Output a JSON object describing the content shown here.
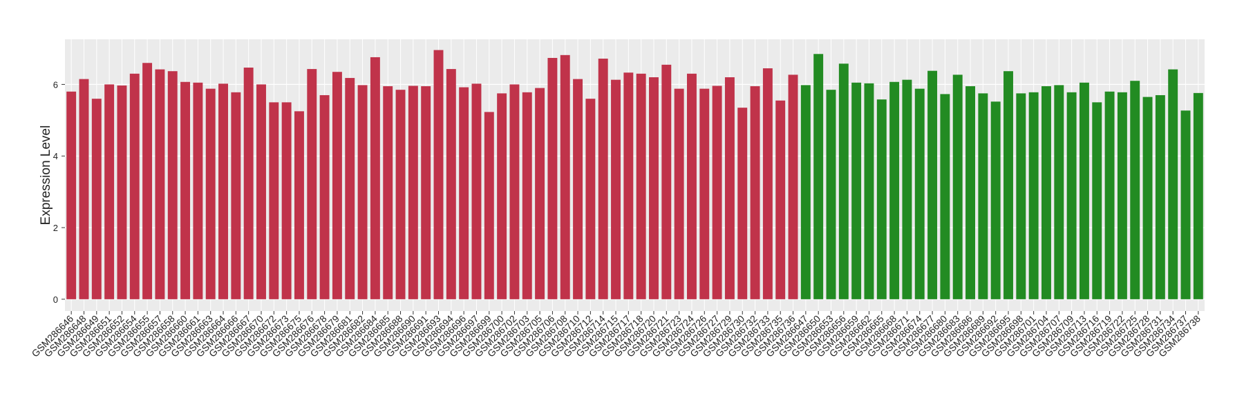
{
  "chart_data": {
    "type": "bar",
    "y_label": "Expression Level",
    "categories": [
      "GSM286646",
      "GSM286648",
      "GSM286649",
      "GSM286651",
      "GSM286652",
      "GSM286654",
      "GSM286655",
      "GSM286657",
      "GSM286658",
      "GSM286660",
      "GSM286661",
      "GSM286663",
      "GSM286664",
      "GSM286666",
      "GSM286667",
      "GSM286670",
      "GSM286672",
      "GSM286673",
      "GSM286675",
      "GSM286676",
      "GSM286678",
      "GSM286679",
      "GSM286681",
      "GSM286682",
      "GSM286684",
      "GSM286685",
      "GSM286688",
      "GSM286690",
      "GSM286691",
      "GSM286693",
      "GSM286694",
      "GSM286696",
      "GSM286697",
      "GSM286699",
      "GSM286700",
      "GSM286702",
      "GSM286703",
      "GSM286705",
      "GSM286706",
      "GSM286708",
      "GSM286710",
      "GSM286712",
      "GSM286714",
      "GSM286715",
      "GSM286717",
      "GSM286718",
      "GSM286720",
      "GSM286721",
      "GSM286723",
      "GSM286724",
      "GSM286726",
      "GSM286727",
      "GSM286729",
      "GSM286730",
      "GSM286732",
      "GSM286733",
      "GSM286735",
      "GSM286736",
      "GSM286647",
      "GSM286650",
      "GSM286653",
      "GSM286656",
      "GSM286659",
      "GSM286662",
      "GSM286665",
      "GSM286668",
      "GSM286671",
      "GSM286674",
      "GSM286677",
      "GSM286680",
      "GSM286683",
      "GSM286686",
      "GSM286689",
      "GSM286692",
      "GSM286695",
      "GSM286698",
      "GSM286701",
      "GSM286704",
      "GSM286707",
      "GSM286709",
      "GSM286713",
      "GSM286716",
      "GSM286719",
      "GSM286722",
      "GSM286725",
      "GSM286728",
      "GSM286731",
      "GSM286734",
      "GSM286737",
      "GSM286738"
    ],
    "series": [
      {
        "color": "#c0334a",
        "values": [
          5.8,
          6.15,
          5.6,
          6.0,
          5.97,
          6.3,
          6.6,
          6.42,
          6.37,
          6.07,
          6.05,
          5.88,
          6.02,
          5.78,
          6.47,
          6.0,
          5.5,
          5.5,
          5.25,
          6.43,
          5.7,
          6.35,
          6.18,
          5.98,
          6.76,
          5.95,
          5.85,
          5.96,
          5.95,
          6.96,
          6.43,
          5.92,
          6.02,
          5.23,
          5.75,
          6.0,
          5.78,
          5.9,
          6.74,
          6.82,
          6.15,
          5.6,
          6.72,
          6.13,
          6.33,
          6.3,
          6.2,
          6.55,
          5.88,
          6.3,
          5.88,
          5.96,
          6.2,
          5.35,
          5.95,
          6.45,
          5.55,
          6.27,
          null,
          null,
          null,
          null,
          null,
          null,
          null,
          null,
          null,
          null,
          null,
          null,
          null,
          null,
          null,
          null,
          null,
          null,
          null,
          null,
          null,
          null,
          null,
          null,
          null,
          null,
          null,
          null,
          null,
          null,
          null,
          null
        ]
      },
      {
        "color": "#228b22",
        "values": [
          null,
          null,
          null,
          null,
          null,
          null,
          null,
          null,
          null,
          null,
          null,
          null,
          null,
          null,
          null,
          null,
          null,
          null,
          null,
          null,
          null,
          null,
          null,
          null,
          null,
          null,
          null,
          null,
          null,
          null,
          null,
          null,
          null,
          null,
          null,
          null,
          null,
          null,
          null,
          null,
          null,
          null,
          null,
          null,
          null,
          null,
          null,
          null,
          null,
          null,
          null,
          null,
          null,
          null,
          null,
          null,
          null,
          null,
          5.98,
          6.85,
          5.85,
          6.58,
          6.05,
          6.03,
          5.58,
          6.07,
          6.13,
          5.88,
          6.38,
          5.73,
          6.27,
          5.95,
          5.75,
          5.52,
          6.37,
          5.75,
          5.78,
          5.95,
          5.98,
          5.78,
          6.05,
          5.5,
          5.8,
          5.78,
          6.1,
          5.65,
          5.7,
          6.42,
          5.27,
          5.76
        ]
      }
    ],
    "ylim": [
      -0.33,
      7.26
    ],
    "yticks": [
      0,
      2,
      4,
      6
    ],
    "grid": true
  }
}
